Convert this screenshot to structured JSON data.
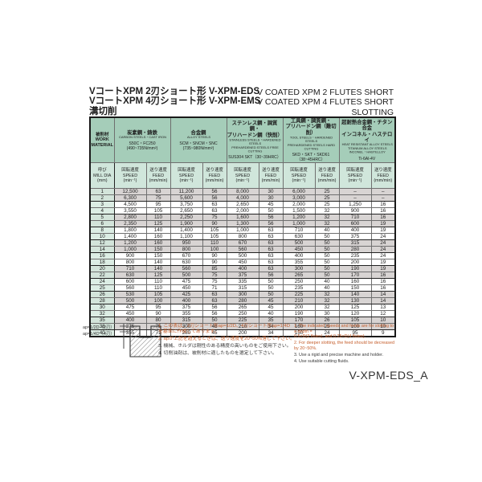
{
  "header": {
    "jp_titles": [
      "VコートXPM 2刃ショート形 V-XPM-EDS",
      "VコートXPM 4刃ショート形 V-XPM-EMS",
      "溝切削"
    ],
    "en_titles": [
      "V COATED XPM 2 FLUTES SHORT",
      "V COATED XPM 4 FLUTES SHORT",
      "SLOTTING"
    ]
  },
  "table": {
    "work_material": "被削材\nWORK\nMATERIAL",
    "mill_dia": "呼び\nMILL DIA\n(mm)",
    "speed": "回転速度\nSPEED\n(min⁻¹)",
    "feed": "送り速度\nFEED\n(mm/min)",
    "materials": [
      {
        "jp": "炭素鋼・鋳鉄",
        "en": "CARBON STEELS・CAST IRON",
        "spec": "S50C・FC250\n(490~735N/mm²)"
      },
      {
        "jp": "合金鋼",
        "en": "ALLOY STEELS",
        "spec": "SCM・SNCM・SNC\n(735~980N/mm²)"
      },
      {
        "jp": "ステンレス鋼・調質鋼・\nプリハードン鋼（快削）",
        "en": "STAINLESS STEELS・HARDENED STEELS\nPREHARDENED STEELS FREE CUTTING",
        "spec": "SUS304 SKT（30~39HRC）"
      },
      {
        "jp": "工具鋼・調質鋼・\nプリハードン鋼（難切削）",
        "en": "TOOL STEELS・HARDENED STEELS\nPREHARDENED STEELS HARD CUTTING",
        "spec": "SKD・SKT・SKD61（38~45HRC）"
      },
      {
        "jp": "超耐熱合金鋼・チタン合金\nインコネル・ハステロイ",
        "en": "HEAT RESISTANT ALLOY STEELS\nTITANIUM ALLOY STEELS\nINCONEL・HASTELLOY",
        "spec": "Ti-6Al-4V"
      }
    ],
    "rows": [
      {
        "dia": "1",
        "v": [
          "12,500",
          "63",
          "11,200",
          "56",
          "8,000",
          "30",
          "6,000",
          "25",
          "–",
          "–"
        ],
        "shaded": true,
        "end": false
      },
      {
        "dia": "2",
        "v": [
          "6,300",
          "75",
          "5,600",
          "56",
          "4,000",
          "30",
          "3,000",
          "25",
          "–",
          "–"
        ],
        "shaded": true,
        "end": true
      },
      {
        "dia": "3",
        "v": [
          "4,500",
          "95",
          "3,750",
          "63",
          "2,650",
          "45",
          "2,000",
          "25",
          "1,250",
          "16"
        ],
        "shaded": false,
        "end": false
      },
      {
        "dia": "4",
        "v": [
          "3,550",
          "105",
          "2,650",
          "63",
          "2,000",
          "50",
          "1,500",
          "32",
          "900",
          "16"
        ],
        "shaded": false,
        "end": true
      },
      {
        "dia": "5",
        "v": [
          "2,800",
          "110",
          "2,250",
          "75",
          "1,600",
          "56",
          "1,200",
          "32",
          "710",
          "16"
        ],
        "shaded": true,
        "end": false
      },
      {
        "dia": "6",
        "v": [
          "2,350",
          "125",
          "1,900",
          "90",
          "1,300",
          "56",
          "1,000",
          "32",
          "600",
          "19"
        ],
        "shaded": true,
        "end": true
      },
      {
        "dia": "8",
        "v": [
          "1,800",
          "140",
          "1,400",
          "105",
          "1,000",
          "63",
          "710",
          "40",
          "400",
          "19"
        ],
        "shaded": false,
        "end": false
      },
      {
        "dia": "10",
        "v": [
          "1,400",
          "160",
          "1,100",
          "105",
          "800",
          "63",
          "630",
          "50",
          "375",
          "24"
        ],
        "shaded": false,
        "end": true
      },
      {
        "dia": "12",
        "v": [
          "1,200",
          "160",
          "950",
          "110",
          "670",
          "63",
          "500",
          "50",
          "315",
          "24"
        ],
        "shaded": true,
        "end": false
      },
      {
        "dia": "14",
        "v": [
          "1,000",
          "150",
          "800",
          "100",
          "560",
          "63",
          "450",
          "50",
          "280",
          "24"
        ],
        "shaded": true,
        "end": true
      },
      {
        "dia": "16",
        "v": [
          "900",
          "150",
          "670",
          "90",
          "500",
          "63",
          "400",
          "50",
          "235",
          "24"
        ],
        "shaded": false,
        "end": false
      },
      {
        "dia": "18",
        "v": [
          "800",
          "140",
          "630",
          "90",
          "450",
          "63",
          "355",
          "50",
          "200",
          "19"
        ],
        "shaded": false,
        "end": true
      },
      {
        "dia": "20",
        "v": [
          "710",
          "140",
          "560",
          "85",
          "400",
          "63",
          "300",
          "50",
          "190",
          "19"
        ],
        "shaded": true,
        "end": false
      },
      {
        "dia": "22",
        "v": [
          "630",
          "125",
          "500",
          "75",
          "375",
          "56",
          "265",
          "50",
          "170",
          "16"
        ],
        "shaded": true,
        "end": true
      },
      {
        "dia": "24",
        "v": [
          "600",
          "110",
          "475",
          "75",
          "335",
          "50",
          "250",
          "40",
          "160",
          "16"
        ],
        "shaded": false,
        "end": false
      },
      {
        "dia": "25",
        "v": [
          "560",
          "110",
          "450",
          "71",
          "315",
          "50",
          "235",
          "40",
          "150",
          "16"
        ],
        "shaded": false,
        "end": true
      },
      {
        "dia": "26",
        "v": [
          "530",
          "105",
          "425",
          "63",
          "300",
          "50",
          "225",
          "32",
          "140",
          "14"
        ],
        "shaded": true,
        "end": false
      },
      {
        "dia": "28",
        "v": [
          "500",
          "100",
          "400",
          "63",
          "280",
          "45",
          "210",
          "32",
          "130",
          "14"
        ],
        "shaded": true,
        "end": true
      },
      {
        "dia": "30",
        "v": [
          "475",
          "95",
          "375",
          "56",
          "265",
          "45",
          "200",
          "32",
          "125",
          "13"
        ],
        "shaded": false,
        "end": false
      },
      {
        "dia": "32",
        "v": [
          "450",
          "90",
          "355",
          "56",
          "250",
          "40",
          "190",
          "30",
          "120",
          "12"
        ],
        "shaded": false,
        "end": true
      },
      {
        "dia": "35",
        "v": [
          "400",
          "80",
          "315",
          "50",
          "225",
          "35",
          "170",
          "26",
          "105",
          "10"
        ],
        "shaded": true,
        "end": false
      },
      {
        "dia": "38",
        "v": [
          "375",
          "75",
          "300",
          "48",
          "210",
          "34",
          "160",
          "25",
          "100",
          "10"
        ],
        "shaded": true,
        "end": true
      },
      {
        "dia": "40",
        "v": [
          "355",
          "71",
          "280",
          "45",
          "200",
          "34",
          "150",
          "24",
          "95",
          "9"
        ],
        "shaded": false,
        "end": false
      }
    ]
  },
  "diagram": {
    "labels": [
      "ap=1/2D（2刃）",
      "ap=1/4D（4刃）"
    ]
  },
  "footnotes": {
    "jp": [
      {
        "text": "1. この表は、2刃ショート形ap=1/2D、4刃ショート形ap=1/4D\n    を基準に作成してあります。",
        "orange": true
      },
      {
        "text": "2. apが上記を超えるときは、送り速度を20~50%落して下さい。",
        "orange": true
      },
      {
        "text": "3. 機械、ホルダは剛性のある精度の高いものをご使用下さい。",
        "orange": false
      },
      {
        "text": "4. 切削油剤は、被削材に適したものを選定して下さい。",
        "orange": false
      }
    ],
    "en": [
      {
        "text": "1. The indicated speeds and feeds are for slotting to a depth =\n    0.5×D(2 flutes), and 0.25×D(4 flutes).",
        "orange": true
      },
      {
        "text": "2. For deeper slotting, the feed should be decreased by 20~50%.",
        "orange": true
      },
      {
        "text": "3. Use a rigid and precise machine and holder.",
        "orange": false
      },
      {
        "text": "4. Use suitable cutting fluids.",
        "orange": false
      }
    ]
  },
  "doc_code": "V-XPM-EDS_A",
  "colors": {
    "header_green": "#a5cdb9",
    "subheader_green": "#d0e6db",
    "dia_column_green": "#dcede4",
    "row_shade": "#d8d4d3",
    "note_orange": "#c65f2d"
  }
}
